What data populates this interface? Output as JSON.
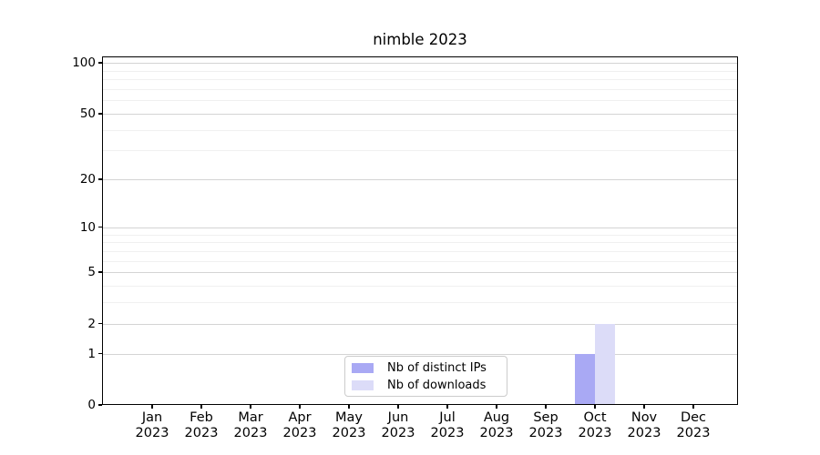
{
  "chart_data": {
    "type": "bar",
    "title": "nimble 2023",
    "categories": [
      "Jan",
      "Feb",
      "Mar",
      "Apr",
      "May",
      "Jun",
      "Jul",
      "Aug",
      "Sep",
      "Oct",
      "Nov",
      "Dec"
    ],
    "category_year": "2023",
    "series": [
      {
        "name": "Nb of distinct IPs",
        "color": "#a9a9f4",
        "values": [
          0,
          0,
          0,
          0,
          0,
          0,
          0,
          0,
          0,
          1,
          0,
          0
        ]
      },
      {
        "name": "Nb of downloads",
        "color": "#dcdcf8",
        "values": [
          0,
          0,
          0,
          0,
          0,
          0,
          0,
          0,
          0,
          2,
          0,
          0
        ]
      }
    ],
    "xlabel": "",
    "ylabel": "",
    "yscale": "log1p",
    "ylim": [
      0,
      100
    ],
    "yticks": [
      0,
      1,
      2,
      5,
      10,
      20,
      50,
      100
    ],
    "minor_yticks": [
      3,
      4,
      6,
      7,
      8,
      9,
      30,
      40,
      60,
      70,
      80,
      90
    ],
    "grid": true,
    "legend": {
      "position": "lower-center-inside",
      "entries": [
        "Nb of distinct IPs",
        "Nb of downloads"
      ]
    }
  },
  "style": {
    "major_grid_color": "#d4d4d4",
    "minor_grid_color": "#f0f0f0",
    "spine_color": "#000000",
    "background": "#ffffff",
    "legend_border_color": "#cccccc"
  }
}
